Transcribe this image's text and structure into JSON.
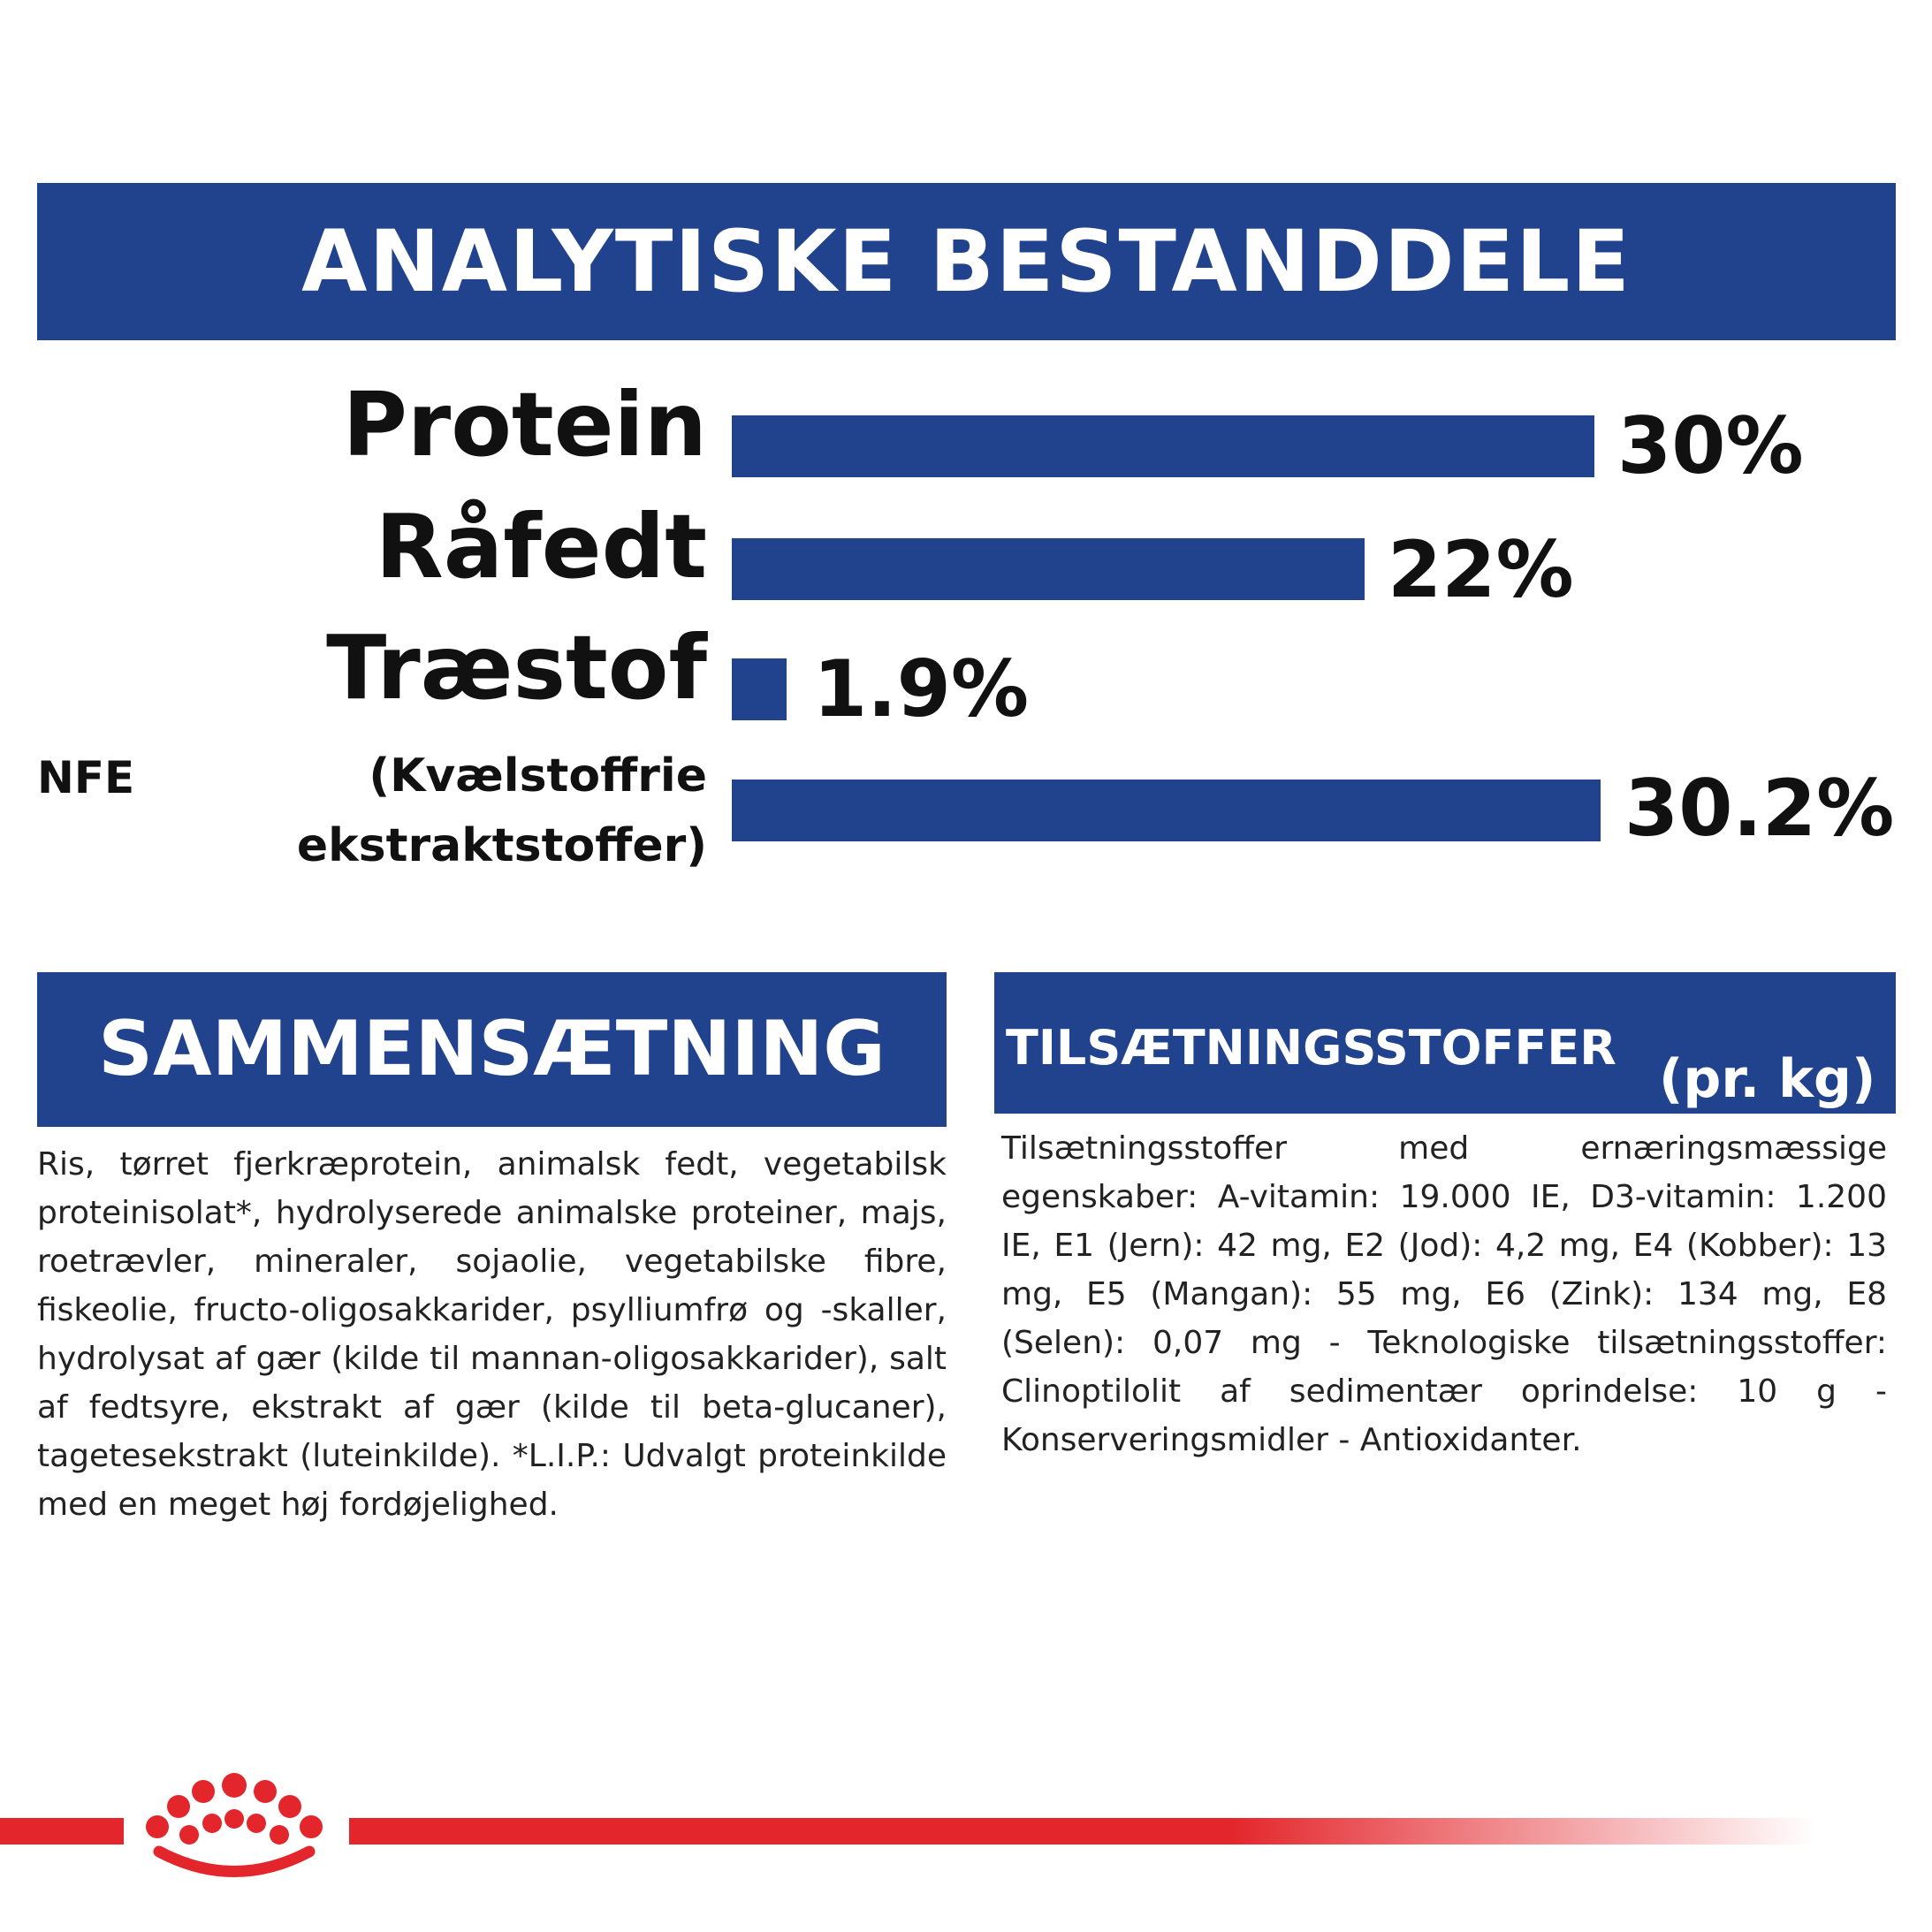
{
  "analytic": {
    "title": "ANALYTISKE BESTANDDELE",
    "rows": [
      {
        "label": "Protein",
        "value": "30%",
        "percent": 30
      },
      {
        "label": "Råfedt",
        "value": "22%",
        "percent": 22
      },
      {
        "label": "Træstof",
        "value": "1.9%",
        "percent": 1.9
      },
      {
        "prefix": "NFE",
        "label_line1": "(Kvælstoffrie",
        "label_line2": "ekstraktstoffer)",
        "value": "30.2%",
        "percent": 30.2
      }
    ]
  },
  "composition": {
    "title": "SAMMENSÆTNING",
    "text": "Ris, tørret fjerkræprotein, animalsk fedt, vegetabilsk proteinisolat*, hydrolyserede animalske proteiner, majs, roetrævler, mineraler, sojaolie, vegetabilske fibre, fiskeolie, fructo-oligosakkarider, psylliumfrø og -skaller, hydrolysat af gær (kilde til mannan-oligosakkarider), salt af fedtsyre, ekstrakt af gær (kilde til beta-glucaner), tagetesekstrakt (luteinkilde). *L.I.P.: Udvalgt proteinkilde med en meget høj fordøjelighed."
  },
  "additives": {
    "title": "TILSÆTNINGSSTOFFER",
    "unit": "(pr. kg)",
    "text": "Tilsætningsstoffer med ernæringsmæssige egenskaber: A-vitamin: 19.000 IE, D3-vitamin: 1.200 IE, E1 (Jern): 42 mg, E2 (Jod): 4,2 mg, E4 (Kobber): 13 mg, E5 (Mangan): 55 mg, E6 (Zink): 134 mg, E8 (Selen): 0,07 mg - Teknologiske tilsætningsstoffer: Clinoptilolit af sedimentær oprindelse: 10 g - Konserveringsmidler - Antioxidanter."
  },
  "colors": {
    "brand_blue": "#21428c",
    "brand_red": "#e3262b"
  },
  "logo": {
    "icon": "royal-crown-logo"
  }
}
